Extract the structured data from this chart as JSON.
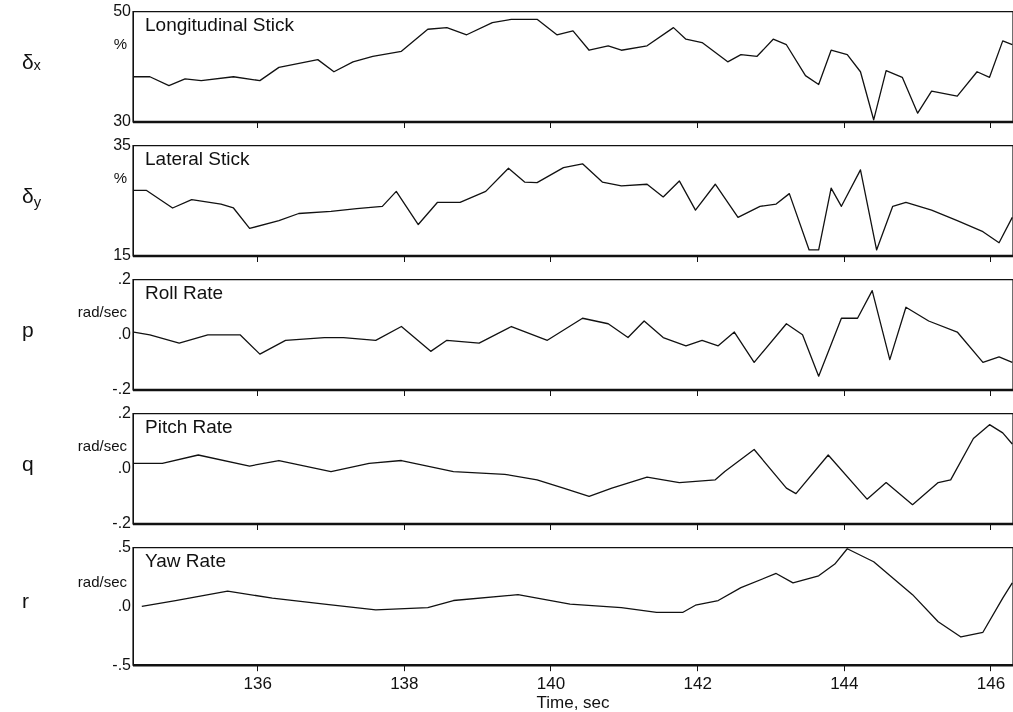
{
  "chart_data": [
    {
      "type": "line",
      "title": "Longitudinal Stick",
      "ylabel": "δₓ",
      "annotations": [
        "%"
      ],
      "xlim": [
        134.3,
        146.3
      ],
      "xticks": [
        136,
        138,
        140,
        142,
        144,
        146
      ],
      "ylim": [
        30,
        50
      ],
      "yticks": [
        30,
        50
      ],
      "tick_labels": "y",
      "grid": false,
      "legend": false,
      "marker": "none",
      "line_style": "solid",
      "x": [
        134.31,
        134.53,
        134.79,
        135.01,
        135.23,
        135.67,
        136.03,
        136.29,
        136.82,
        137.04,
        137.3,
        137.57,
        137.96,
        138.32,
        138.58,
        138.85,
        139.2,
        139.46,
        139.81,
        140.08,
        140.3,
        140.52,
        140.78,
        140.96,
        141.31,
        141.67,
        141.84,
        142.06,
        142.41,
        142.59,
        142.81,
        143.03,
        143.21,
        143.47,
        143.65,
        143.82,
        144.04,
        144.22,
        144.4,
        144.57,
        144.79,
        145.0,
        145.19,
        145.54,
        145.81,
        145.98,
        146.16,
        146.29
      ],
      "series": [
        {
          "color": "#111111",
          "values": [
            38.2,
            38.2,
            36.6,
            37.8,
            37.5,
            38.2,
            37.5,
            39.9,
            41.3,
            39.1,
            40.9,
            41.9,
            42.8,
            46.8,
            47.1,
            45.8,
            48.0,
            48.6,
            48.6,
            45.8,
            46.5,
            43.0,
            43.8,
            43.0,
            43.8,
            47.1,
            45.0,
            44.4,
            40.9,
            42.2,
            41.9,
            45.0,
            44.0,
            38.4,
            36.8,
            43.0,
            42.2,
            39.1,
            30.4,
            39.3,
            38.1,
            31.6,
            35.6,
            34.7,
            39.1,
            38.1,
            44.7,
            44.0
          ]
        }
      ]
    },
    {
      "type": "line",
      "title": "Lateral Stick",
      "ylabel": "δ$_{y}$",
      "annotations": [
        "%"
      ],
      "xlim": [
        134.3,
        146.3
      ],
      "xticks": [
        136,
        138,
        140,
        142,
        144,
        146
      ],
      "ylim": [
        15,
        35
      ],
      "yticks": [
        15,
        35
      ],
      "tick_labels": "y",
      "grid": false,
      "legend": false,
      "marker": "none",
      "line_style": "solid",
      "x": [
        134.31,
        134.48,
        134.84,
        135.1,
        135.5,
        135.67,
        135.89,
        136.29,
        136.56,
        137.0,
        137.35,
        137.7,
        137.89,
        138.19,
        138.45,
        138.76,
        139.11,
        139.42,
        139.64,
        139.81,
        140.17,
        140.43,
        140.7,
        140.96,
        141.31,
        141.53,
        141.75,
        141.97,
        142.24,
        142.55,
        142.85,
        143.07,
        143.25,
        143.52,
        143.65,
        143.82,
        143.96,
        144.22,
        144.44,
        144.66,
        144.84,
        145.19,
        145.54,
        145.89,
        146.11,
        146.29
      ],
      "series": [
        {
          "color": "#111111",
          "values": [
            26.9,
            26.9,
            23.7,
            25.2,
            24.4,
            23.7,
            20.0,
            21.4,
            22.7,
            23.1,
            23.6,
            24.0,
            26.7,
            20.7,
            24.7,
            24.7,
            26.7,
            30.9,
            28.4,
            28.3,
            31.0,
            31.7,
            28.4,
            27.7,
            28.0,
            25.7,
            28.6,
            23.3,
            28.0,
            22.0,
            24.0,
            24.4,
            26.3,
            16.1,
            16.1,
            27.3,
            24.0,
            30.6,
            16.1,
            24.0,
            24.7,
            23.3,
            21.4,
            19.4,
            17.4,
            22.0
          ]
        }
      ]
    },
    {
      "type": "line",
      "title": "Roll Rate",
      "ylabel": "p",
      "annotations": [
        "rad/sec"
      ],
      "xlim": [
        134.3,
        146.3
      ],
      "xticks": [
        136,
        138,
        140,
        142,
        144,
        146
      ],
      "ylim": [
        -0.2,
        0.2
      ],
      "yticks": [
        {
          "value": -0.2,
          "label": "-.2"
        },
        {
          "value": 0,
          "label": ".0"
        },
        {
          "value": 0.2,
          "label": ".2"
        }
      ],
      "tick_labels": "y",
      "grid": false,
      "legend": false,
      "marker": "none",
      "line_style": "solid",
      "x": [
        134.31,
        134.53,
        134.93,
        135.32,
        135.76,
        136.03,
        136.38,
        136.91,
        137.17,
        137.61,
        137.96,
        138.36,
        138.58,
        139.02,
        139.46,
        139.95,
        140.43,
        140.78,
        141.05,
        141.27,
        141.53,
        141.84,
        142.06,
        142.28,
        142.5,
        142.77,
        143.21,
        143.43,
        143.65,
        143.96,
        144.18,
        144.38,
        144.62,
        144.84,
        145.15,
        145.54,
        145.89,
        146.11,
        146.29
      ],
      "series": [
        {
          "color": "#111111",
          "values": [
            0.01,
            0.0,
            -0.03,
            0.0,
            0.0,
            -0.07,
            -0.02,
            -0.01,
            -0.01,
            -0.02,
            0.03,
            -0.06,
            -0.02,
            -0.03,
            0.03,
            -0.02,
            0.06,
            0.04,
            -0.01,
            0.05,
            -0.01,
            -0.04,
            -0.02,
            -0.04,
            0.01,
            -0.1,
            0.04,
            0.0,
            -0.15,
            0.06,
            0.06,
            0.16,
            -0.09,
            0.1,
            0.05,
            0.01,
            -0.1,
            -0.08,
            -0.1
          ]
        }
      ]
    },
    {
      "type": "line",
      "title": "Pitch Rate",
      "ylabel": "q",
      "annotations": [
        "rad/sec"
      ],
      "xlim": [
        134.3,
        146.3
      ],
      "xticks": [
        136,
        138,
        140,
        142,
        144,
        146
      ],
      "ylim": [
        -0.2,
        0.2
      ],
      "yticks": [
        {
          "value": -0.2,
          "label": "-.2"
        },
        {
          "value": 0,
          "label": ".0"
        },
        {
          "value": 0.2,
          "label": ".2"
        }
      ],
      "tick_labels": "y",
      "grid": false,
      "legend": false,
      "marker": "none",
      "line_style": "solid",
      "x": [
        134.31,
        134.7,
        135.19,
        135.89,
        136.29,
        137.0,
        137.52,
        137.96,
        138.67,
        139.37,
        139.81,
        140.17,
        140.52,
        140.83,
        141.31,
        141.75,
        142.24,
        142.37,
        142.77,
        143.21,
        143.34,
        143.78,
        144.31,
        144.57,
        144.93,
        145.28,
        145.45,
        145.76,
        145.98,
        146.16,
        146.29
      ],
      "series": [
        {
          "color": "#111111",
          "values": [
            0.02,
            0.02,
            0.05,
            0.01,
            0.03,
            -0.01,
            0.02,
            0.03,
            -0.01,
            -0.02,
            -0.04,
            -0.07,
            -0.1,
            -0.07,
            -0.03,
            -0.05,
            -0.04,
            -0.01,
            0.07,
            -0.07,
            -0.09,
            0.05,
            -0.11,
            -0.05,
            -0.13,
            -0.05,
            -0.04,
            0.11,
            0.16,
            0.13,
            0.09
          ]
        }
      ]
    },
    {
      "type": "line",
      "title": "Yaw Rate",
      "ylabel": "r",
      "xlabel": "Time, sec",
      "annotations": [
        "rad/sec"
      ],
      "xlim": [
        134.3,
        146.3
      ],
      "xticks": [
        136,
        138,
        140,
        142,
        144,
        146
      ],
      "ylim": [
        -0.5,
        0.5
      ],
      "yticks": [
        {
          "value": -0.5,
          "label": "-.5"
        },
        {
          "value": 0,
          "label": ".0"
        },
        {
          "value": 0.5,
          "label": ".5"
        }
      ],
      "grid": false,
      "legend": false,
      "marker": "none",
      "line_style": "solid",
      "x": [
        134.42,
        134.88,
        135.59,
        136.2,
        136.91,
        137.61,
        138.32,
        138.67,
        139.55,
        140.26,
        140.96,
        141.44,
        141.8,
        141.97,
        142.28,
        142.59,
        143.07,
        143.3,
        143.65,
        143.87,
        144.04,
        144.4,
        144.93,
        145.28,
        145.59,
        145.89,
        146.16,
        146.29
      ],
      "series": [
        {
          "color": "#111111",
          "values": [
            0.0,
            0.05,
            0.13,
            0.07,
            0.02,
            -0.03,
            -0.01,
            0.05,
            0.1,
            0.02,
            -0.01,
            -0.05,
            -0.05,
            0.01,
            0.05,
            0.16,
            0.28,
            0.2,
            0.26,
            0.36,
            0.49,
            0.38,
            0.1,
            -0.13,
            -0.26,
            -0.22,
            0.07,
            0.2
          ]
        }
      ]
    }
  ]
}
